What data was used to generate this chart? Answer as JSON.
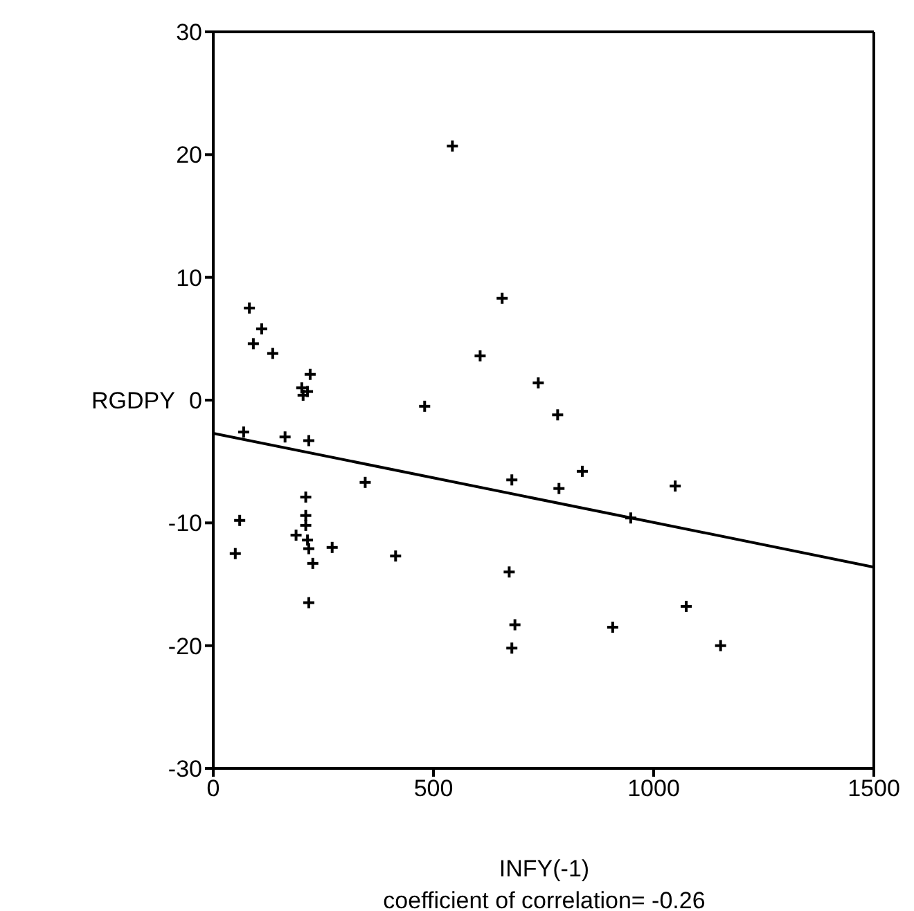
{
  "chart_data": {
    "type": "scatter",
    "xlabel": "INFY(-1)",
    "ylabel": "RGDPY",
    "annotations": [
      "coefficient of correlation= -0.26"
    ],
    "xlim": [
      0,
      1500
    ],
    "xticks": [
      0,
      500,
      1000,
      1500
    ],
    "ylim": [
      -30,
      30
    ],
    "yticks": [
      -30,
      -20,
      -10,
      0,
      10,
      20,
      30
    ],
    "marker": "cross",
    "series": [
      {
        "color": "#000000",
        "x": [
          82,
          110,
          91,
          135,
          220,
          201,
          214,
          204,
          480,
          69,
          163,
          217,
          345,
          210,
          60,
          210,
          210,
          188,
          214,
          217,
          270,
          50,
          226,
          414,
          217,
          543,
          656,
          606,
          738,
          782,
          678,
          785,
          838,
          1049,
          948,
          672,
          1074,
          685,
          907,
          678,
          1152
        ],
        "values": [
          7.5,
          5.8,
          4.6,
          3.8,
          2.1,
          1.0,
          0.7,
          0.4,
          -0.5,
          -2.6,
          -3.0,
          -3.3,
          -6.7,
          -7.9,
          -9.8,
          -9.4,
          -10.2,
          -11.0,
          -11.4,
          -12.1,
          -12.0,
          -12.5,
          -13.3,
          -12.7,
          -16.5,
          20.7,
          8.3,
          3.6,
          1.4,
          -1.2,
          -6.5,
          -7.2,
          -5.8,
          -7.0,
          -9.6,
          -14.0,
          -16.8,
          -18.3,
          -18.5,
          -20.2,
          -20.0
        ]
      },
      {
        "type": "line",
        "color": "#000000",
        "marker": "none",
        "x": [
          0,
          1500
        ],
        "values": [
          -2.7,
          -13.6
        ]
      }
    ]
  }
}
